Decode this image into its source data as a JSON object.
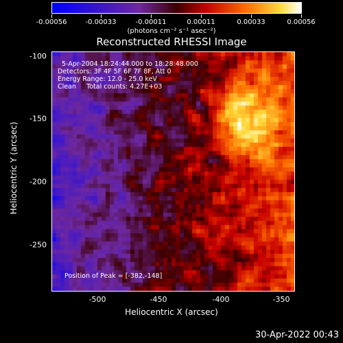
{
  "colorbar": {
    "tick_labels": [
      "-0.00056",
      "-0.00033",
      "-0.00011",
      "0.00011",
      "0.00033",
      "0.00056"
    ],
    "units": "(photons cm⁻² s⁻¹ asec⁻²)"
  },
  "title": "Reconstructed RHESSI Image",
  "info": {
    "time_range": "5-Apr-2004 18:24:44.000 to 18:28:48.000",
    "detectors": "Detectors: 3F 4F 5F 6F 7F 8F, Att 0",
    "energy": "Energy Range: 12.0 - 25.0 keV",
    "clean": "Clean     Total counts: 4.27E+03",
    "peak": "Position of Peak = [-382,-148]"
  },
  "axes": {
    "x_ticks": [
      "-500",
      "-450",
      "-400",
      "-350"
    ],
    "y_ticks": [
      "-100",
      "-150",
      "-200",
      "-250"
    ],
    "xlabel": "Heliocentric X (arcsec)",
    "ylabel": "Heliocentric Y (arcsec)"
  },
  "timestamp": "30-Apr-2022 00:43",
  "chart_data": {
    "type": "heatmap",
    "title": "Reconstructed RHESSI Image",
    "xlabel": "Heliocentric X (arcsec)",
    "ylabel": "Heliocentric Y (arcsec)",
    "xlim": [
      -540,
      -345
    ],
    "ylim": [
      -285,
      -95
    ],
    "x_ticks": [
      -500,
      -450,
      -400,
      -350
    ],
    "y_ticks": [
      -100,
      -150,
      -200,
      -250
    ],
    "color_range": [
      -0.00056,
      0.00056
    ],
    "colormap": "blue-purple-red-yellow-white",
    "peak": [
      -382,
      -148
    ],
    "colors": {
      "background": "#000000",
      "text": "#ffffff"
    }
  }
}
